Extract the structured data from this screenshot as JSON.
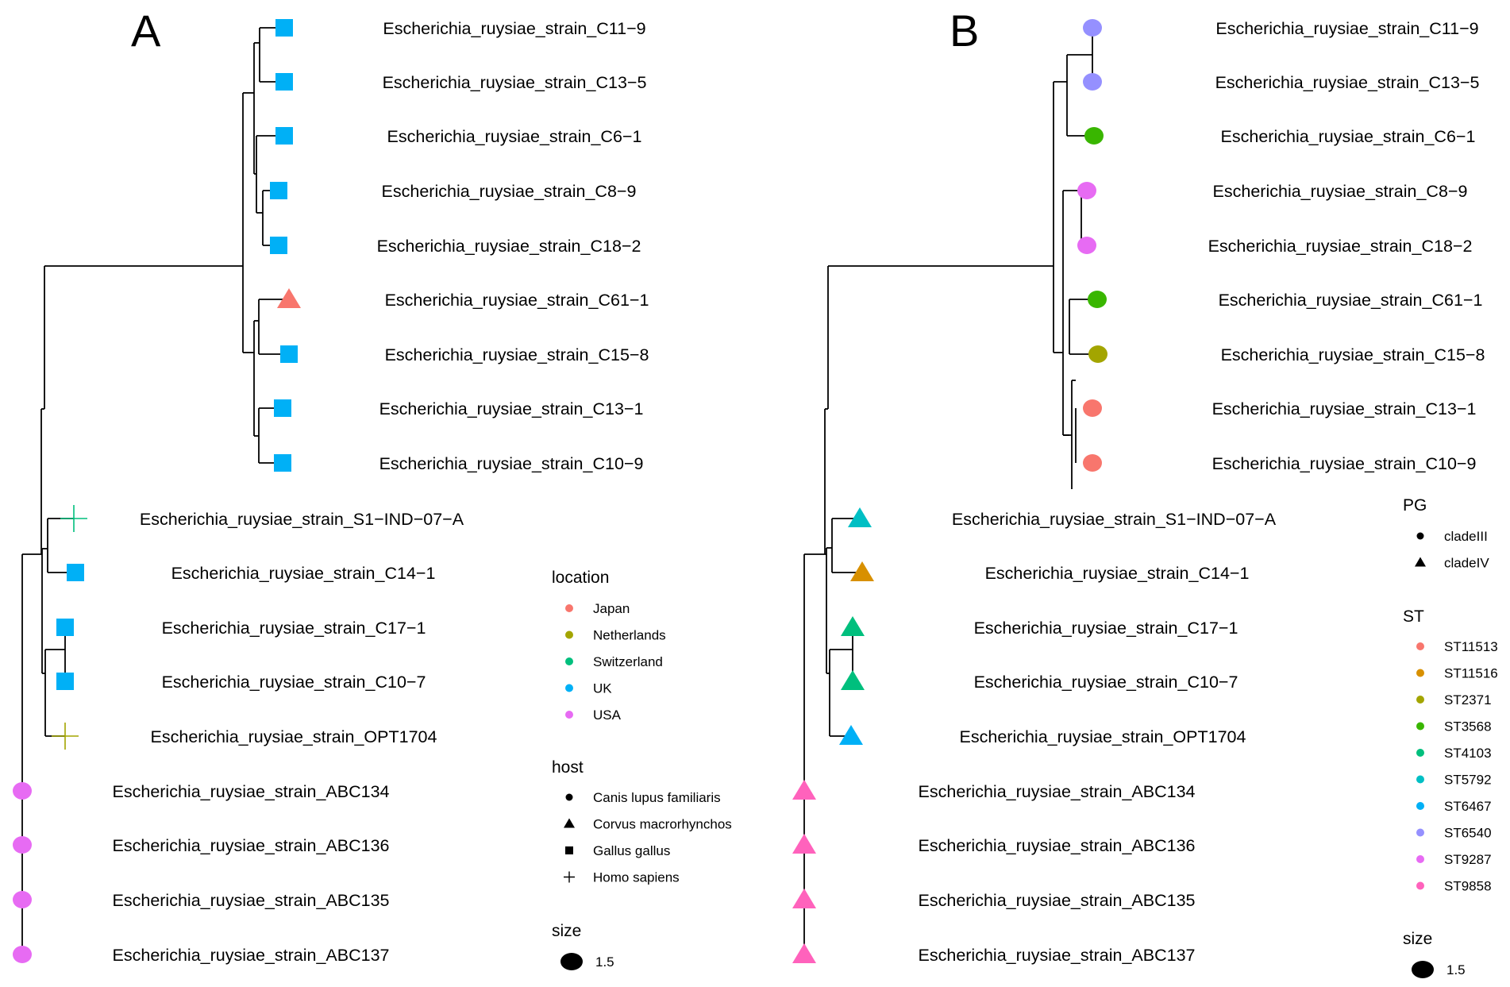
{
  "colors": {
    "location": {
      "Japan": "#F8766D",
      "Netherlands": "#A3A500",
      "Switzerland": "#00BF7D",
      "UK": "#00B0F6",
      "USA": "#E76BF3"
    },
    "st": {
      "ST11513": "#F8766D",
      "ST11516": "#D89000",
      "ST2371": "#A3A500",
      "ST3568": "#39B600",
      "ST4103": "#00BF7D",
      "ST5792": "#00BFC4",
      "ST6467": "#00B0F6",
      "ST6540": "#9590FF",
      "ST9287": "#E76BF3",
      "ST9858": "#FF62BC"
    }
  },
  "panels": [
    {
      "letter": "A",
      "tips": [
        {
          "label": "Escherichia_ruysiae_strain_C11−9",
          "shape": "square",
          "color_key": "UK"
        },
        {
          "label": "Escherichia_ruysiae_strain_C13−5",
          "shape": "square",
          "color_key": "UK"
        },
        {
          "label": "Escherichia_ruysiae_strain_C6−1",
          "shape": "square",
          "color_key": "UK"
        },
        {
          "label": "Escherichia_ruysiae_strain_C8−9",
          "shape": "square",
          "color_key": "UK"
        },
        {
          "label": "Escherichia_ruysiae_strain_C18−2",
          "shape": "square",
          "color_key": "UK"
        },
        {
          "label": "Escherichia_ruysiae_strain_C61−1",
          "shape": "triangle",
          "color_key": "Japan"
        },
        {
          "label": "Escherichia_ruysiae_strain_C15−8",
          "shape": "square",
          "color_key": "UK"
        },
        {
          "label": "Escherichia_ruysiae_strain_C13−1",
          "shape": "square",
          "color_key": "UK"
        },
        {
          "label": "Escherichia_ruysiae_strain_C10−9",
          "shape": "square",
          "color_key": "UK"
        },
        {
          "label": "Escherichia_ruysiae_strain_S1−IND−07−A",
          "shape": "plus",
          "color_key": "Switzerland"
        },
        {
          "label": "Escherichia_ruysiae_strain_C14−1",
          "shape": "square",
          "color_key": "UK"
        },
        {
          "label": "Escherichia_ruysiae_strain_C17−1",
          "shape": "square",
          "color_key": "UK"
        },
        {
          "label": "Escherichia_ruysiae_strain_C10−7",
          "shape": "square",
          "color_key": "UK"
        },
        {
          "label": "Escherichia_ruysiae_strain_OPT1704",
          "shape": "plus",
          "color_key": "Netherlands"
        },
        {
          "label": "Escherichia_ruysiae_strain_ABC134",
          "shape": "circle",
          "color_key": "USA"
        },
        {
          "label": "Escherichia_ruysiae_strain_ABC136",
          "shape": "circle",
          "color_key": "USA"
        },
        {
          "label": "Escherichia_ruysiae_strain_ABC135",
          "shape": "circle",
          "color_key": "USA"
        },
        {
          "label": "Escherichia_ruysiae_strain_ABC137",
          "shape": "circle",
          "color_key": "USA"
        }
      ],
      "legends": [
        {
          "title": "location",
          "items": [
            {
              "label": "Japan",
              "symbol": "dot",
              "color": "#F8766D"
            },
            {
              "label": "Netherlands",
              "symbol": "dot",
              "color": "#A3A500"
            },
            {
              "label": "Switzerland",
              "symbol": "dot",
              "color": "#00BF7D"
            },
            {
              "label": "UK",
              "symbol": "dot",
              "color": "#00B0F6"
            },
            {
              "label": "USA",
              "symbol": "dot",
              "color": "#E76BF3"
            }
          ]
        },
        {
          "title": "host",
          "items": [
            {
              "label": "Canis lupus familiaris",
              "symbol": "circle",
              "color": "#000000"
            },
            {
              "label": "Corvus macrorhynchos",
              "symbol": "triangle",
              "color": "#000000"
            },
            {
              "label": "Gallus gallus",
              "symbol": "square",
              "color": "#000000"
            },
            {
              "label": "Homo sapiens",
              "symbol": "plus",
              "color": "#000000"
            }
          ]
        },
        {
          "title": "size",
          "items": [
            {
              "label": "1.5",
              "symbol": "bigdot",
              "color": "#000000"
            }
          ]
        }
      ]
    },
    {
      "letter": "B",
      "tips": [
        {
          "label": "Escherichia_ruysiae_strain_C11−9",
          "shape": "circle",
          "color_key": "ST6540"
        },
        {
          "label": "Escherichia_ruysiae_strain_C13−5",
          "shape": "circle",
          "color_key": "ST6540"
        },
        {
          "label": "Escherichia_ruysiae_strain_C6−1",
          "shape": "circle",
          "color_key": "ST3568"
        },
        {
          "label": "Escherichia_ruysiae_strain_C8−9",
          "shape": "circle",
          "color_key": "ST9287"
        },
        {
          "label": "Escherichia_ruysiae_strain_C18−2",
          "shape": "circle",
          "color_key": "ST9287"
        },
        {
          "label": "Escherichia_ruysiae_strain_C61−1",
          "shape": "circle",
          "color_key": "ST3568"
        },
        {
          "label": "Escherichia_ruysiae_strain_C15−8",
          "shape": "circle",
          "color_key": "ST2371"
        },
        {
          "label": "Escherichia_ruysiae_strain_C13−1",
          "shape": "circle",
          "color_key": "ST11513"
        },
        {
          "label": "Escherichia_ruysiae_strain_C10−9",
          "shape": "circle",
          "color_key": "ST11513"
        },
        {
          "label": "Escherichia_ruysiae_strain_S1−IND−07−A",
          "shape": "triangle",
          "color_key": "ST5792"
        },
        {
          "label": "Escherichia_ruysiae_strain_C14−1",
          "shape": "triangle",
          "color_key": "ST11516"
        },
        {
          "label": "Escherichia_ruysiae_strain_C17−1",
          "shape": "triangle",
          "color_key": "ST4103"
        },
        {
          "label": "Escherichia_ruysiae_strain_C10−7",
          "shape": "triangle",
          "color_key": "ST4103"
        },
        {
          "label": "Escherichia_ruysiae_strain_OPT1704",
          "shape": "triangle",
          "color_key": "ST6467"
        },
        {
          "label": "Escherichia_ruysiae_strain_ABC134",
          "shape": "triangle",
          "color_key": "ST9858"
        },
        {
          "label": "Escherichia_ruysiae_strain_ABC136",
          "shape": "triangle",
          "color_key": "ST9858"
        },
        {
          "label": "Escherichia_ruysiae_strain_ABC135",
          "shape": "triangle",
          "color_key": "ST9858"
        },
        {
          "label": "Escherichia_ruysiae_strain_ABC137",
          "shape": "triangle",
          "color_key": "ST9858"
        }
      ],
      "legends": [
        {
          "title": "PG",
          "items": [
            {
              "label": "cladeIII",
              "symbol": "circle",
              "color": "#000000"
            },
            {
              "label": "cladeIV",
              "symbol": "triangle",
              "color": "#000000"
            }
          ]
        },
        {
          "title": "ST",
          "items": [
            {
              "label": "ST11513",
              "symbol": "dot",
              "color": "#F8766D"
            },
            {
              "label": "ST11516",
              "symbol": "dot",
              "color": "#D89000"
            },
            {
              "label": "ST2371",
              "symbol": "dot",
              "color": "#A3A500"
            },
            {
              "label": "ST3568",
              "symbol": "dot",
              "color": "#39B600"
            },
            {
              "label": "ST4103",
              "symbol": "dot",
              "color": "#00BF7D"
            },
            {
              "label": "ST5792",
              "symbol": "dot",
              "color": "#00BFC4"
            },
            {
              "label": "ST6467",
              "symbol": "dot",
              "color": "#00B0F6"
            },
            {
              "label": "ST6540",
              "symbol": "dot",
              "color": "#9590FF"
            },
            {
              "label": "ST9287",
              "symbol": "dot",
              "color": "#E76BF3"
            },
            {
              "label": "ST9858",
              "symbol": "dot",
              "color": "#FF62BC"
            }
          ]
        },
        {
          "title": "size",
          "items": [
            {
              "label": "1.5",
              "symbol": "bigdot",
              "color": "#000000"
            }
          ]
        }
      ]
    }
  ]
}
